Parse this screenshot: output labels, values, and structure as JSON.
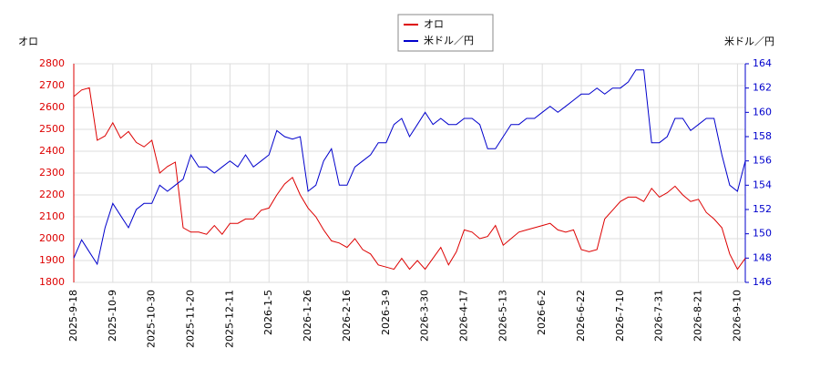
{
  "chart_data": {
    "type": "line",
    "y_label": "オロ",
    "y2_label": "米ドル／円",
    "categories": [
      "2025-9-18",
      null,
      null,
      null,
      null,
      "2025-10-9",
      null,
      null,
      null,
      null,
      "2025-10-30",
      null,
      null,
      null,
      null,
      "2025-11-20",
      null,
      null,
      null,
      null,
      "2025-12-11",
      null,
      null,
      null,
      null,
      "2026-1-5",
      null,
      null,
      null,
      null,
      "2026-1-26",
      null,
      null,
      null,
      null,
      "2026-2-16",
      null,
      null,
      null,
      null,
      "2026-3-9",
      null,
      null,
      null,
      null,
      "2026-3-30",
      null,
      null,
      null,
      null,
      "2026-4-17",
      null,
      null,
      null,
      null,
      "2026-5-13",
      null,
      null,
      null,
      null,
      "2026-6-2",
      null,
      null,
      null,
      null,
      "2026-6-22",
      null,
      null,
      null,
      null,
      "2026-7-10",
      null,
      null,
      null,
      null,
      "2026-7-31",
      null,
      null,
      null,
      null,
      "2026-8-21",
      null,
      null,
      null,
      null,
      "2026-9-10",
      null
    ],
    "series": [
      {
        "name": "オロ",
        "color": "#dd0000",
        "axis": "y",
        "values": [
          2650,
          2680,
          2690,
          2450,
          2470,
          2530,
          2460,
          2490,
          2440,
          2420,
          2450,
          2300,
          2330,
          2350,
          2050,
          2030,
          2030,
          2020,
          2060,
          2020,
          2070,
          2070,
          2090,
          2090,
          2130,
          2140,
          2200,
          2250,
          2280,
          2200,
          2140,
          2100,
          2040,
          1990,
          1980,
          1960,
          2000,
          1950,
          1930,
          1880,
          1870,
          1860,
          1910,
          1860,
          1900,
          1860,
          1910,
          1960,
          1880,
          1940,
          2040,
          2030,
          2000,
          2010,
          2060,
          1970,
          2000,
          2030,
          2040,
          2050,
          2060,
          2070,
          2040,
          2030,
          2040,
          1950,
          1940,
          1950,
          2090,
          2130,
          2170,
          2190,
          2190,
          2170,
          2230,
          2190,
          2210,
          2240,
          2200,
          2170,
          2180,
          2120,
          2090,
          2050,
          1930,
          1860,
          1910
        ]
      },
      {
        "name": "米ドル／円",
        "color": "#0000cc",
        "axis": "y2",
        "values": [
          148,
          149.5,
          148.5,
          147.5,
          150.5,
          152.5,
          151.5,
          150.5,
          152,
          152.5,
          152.5,
          154,
          153.5,
          154,
          154.5,
          156.5,
          155.5,
          155.5,
          155,
          155.5,
          156,
          155.5,
          156.5,
          155.5,
          156,
          156.5,
          158.5,
          158,
          157.8,
          158,
          153.5,
          154,
          156,
          157,
          154,
          154,
          155.5,
          156,
          156.5,
          157.5,
          157.5,
          159,
          159.5,
          158,
          159,
          160,
          159,
          159.5,
          159,
          159,
          159.5,
          159.5,
          159,
          157,
          157,
          158,
          159,
          159,
          159.5,
          159.5,
          160,
          160.5,
          160,
          160.5,
          161,
          161.5,
          161.5,
          162,
          161.5,
          162,
          162,
          162.5,
          163.5,
          163.5,
          157.5,
          157.5,
          158,
          159.5,
          159.5,
          158.5,
          159,
          159.5,
          159.5,
          156.5,
          154,
          153.5,
          156
        ]
      }
    ],
    "ylim": [
      1800,
      2800
    ],
    "yticks": [
      1800,
      1900,
      2000,
      2100,
      2200,
      2300,
      2400,
      2500,
      2600,
      2700,
      2800
    ],
    "y2lim": [
      146,
      164
    ],
    "y2ticks": [
      146,
      148,
      150,
      152,
      154,
      156,
      158,
      160,
      162,
      164
    ],
    "grid": true,
    "legend": "top"
  }
}
